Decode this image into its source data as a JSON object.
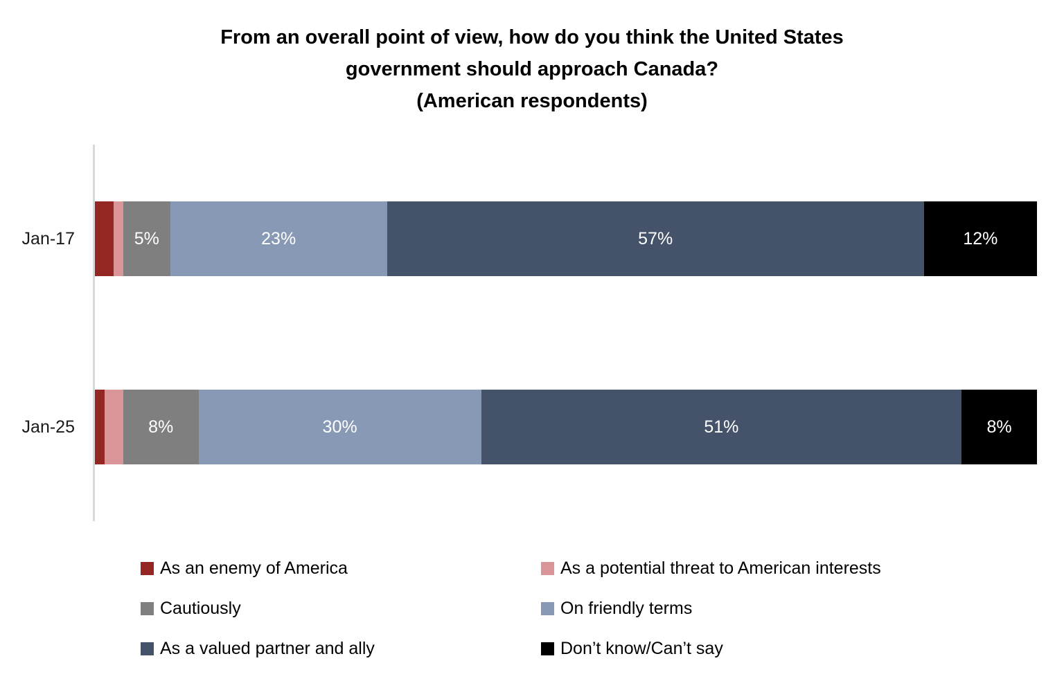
{
  "chart_data": {
    "type": "bar",
    "orientation": "horizontal",
    "stacked": true,
    "title_lines": [
      "From an overall point of view, how do you think the United States",
      "government should approach Canada?",
      "(American respondents)"
    ],
    "categories": [
      "Jan-17",
      "Jan-25"
    ],
    "series": [
      {
        "name": "As an enemy of America",
        "color": "#942623",
        "values": [
          2,
          1
        ],
        "labels": [
          "",
          ""
        ]
      },
      {
        "name": "As a potential threat to American interests",
        "color": "#D99597",
        "values": [
          1,
          2
        ],
        "labels": [
          "",
          ""
        ]
      },
      {
        "name": "Cautiously",
        "color": "#7F7F7F",
        "values": [
          5,
          8
        ],
        "labels": [
          "5%",
          "8%"
        ]
      },
      {
        "name": "On friendly terms",
        "color": "#8799B4",
        "values": [
          23,
          30
        ],
        "labels": [
          "23%",
          "30%"
        ]
      },
      {
        "name": "As a valued partner and ally",
        "color": "#445369",
        "values": [
          57,
          51
        ],
        "labels": [
          "57%",
          "51%"
        ]
      },
      {
        "name": "Don’t know/Can’t say",
        "color": "#000000",
        "values": [
          12,
          8
        ],
        "labels": [
          "12%",
          "8%"
        ]
      }
    ],
    "xlim": [
      0,
      100
    ],
    "axis_line_color": "#D9D9D9",
    "value_label_color": "#ffffff",
    "grid": false,
    "legend_position": "bottom",
    "legend_columns": 2
  }
}
